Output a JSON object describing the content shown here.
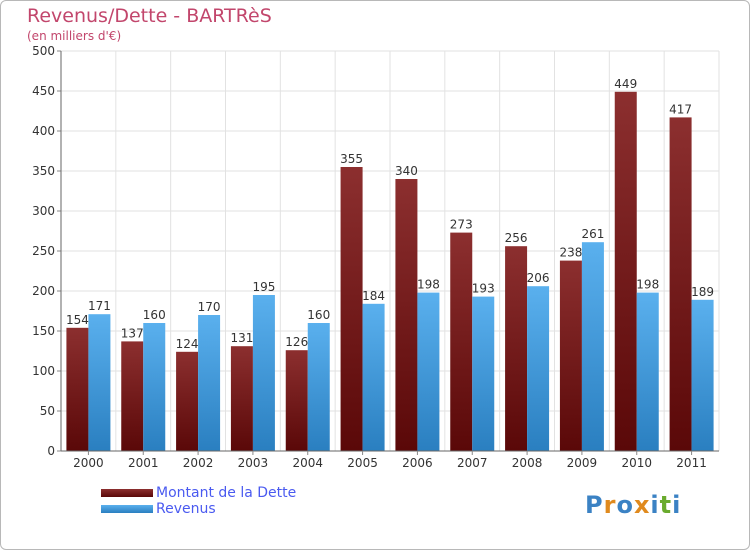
{
  "chart_data": {
    "type": "bar",
    "title": "Revenus/Dette - BARTRèS",
    "subtitle": "(en milliers d'€)",
    "categories": [
      "2000",
      "2001",
      "2002",
      "2003",
      "2004",
      "2005",
      "2006",
      "2007",
      "2008",
      "2009",
      "2010",
      "2011"
    ],
    "series": [
      {
        "name": "Montant de la Dette",
        "values": [
          154,
          137,
          124,
          131,
          126,
          355,
          340,
          273,
          256,
          238,
          449,
          417
        ],
        "color": "#7a1a1a"
      },
      {
        "name": "Revenus",
        "values": [
          171,
          160,
          170,
          195,
          160,
          184,
          198,
          193,
          206,
          261,
          198,
          189
        ],
        "color": "#4aa6e6"
      }
    ],
    "ylim": [
      0,
      500
    ],
    "yticks": [
      0,
      50,
      100,
      150,
      200,
      250,
      300,
      350,
      400,
      450,
      500
    ],
    "grid": true,
    "legend_position": "bottom-left"
  },
  "logo": {
    "text": "Proxiti",
    "letters": [
      "P",
      "r",
      "o",
      "x",
      "i",
      "t",
      "i"
    ],
    "colors": [
      "#3b82c4",
      "#e08a1e",
      "#3b82c4",
      "#e08a1e",
      "#3b82c4",
      "#6aab2e",
      "#3b82c4"
    ]
  }
}
